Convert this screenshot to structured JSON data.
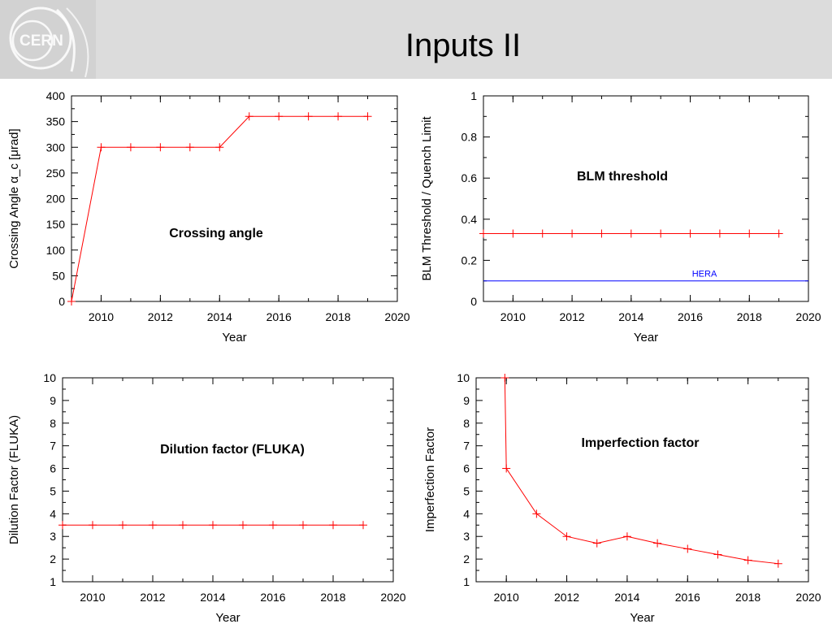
{
  "slide": {
    "title": "Inputs II",
    "logo_text": "CERN"
  },
  "colors": {
    "header_bg": "#dcdcdc",
    "series": "#ff0000",
    "hera": "#0000ff"
  },
  "chart_data": [
    {
      "type": "line",
      "annotation": "Crossing angle",
      "xlabel": "Year",
      "ylabel": "Crossing Angle α_c [μrad]",
      "xlim": [
        2009,
        2020
      ],
      "ylim": [
        0,
        400
      ],
      "xticks": [
        2010,
        2012,
        2014,
        2016,
        2018,
        2020
      ],
      "yticks": [
        0,
        50,
        100,
        150,
        200,
        250,
        300,
        350,
        400
      ],
      "series": [
        {
          "color": "#ff0000",
          "x": [
            2009,
            2010,
            2011,
            2012,
            2013,
            2014,
            2015,
            2016,
            2017,
            2018,
            2019
          ],
          "y": [
            0,
            300,
            300,
            300,
            300,
            300,
            360,
            360,
            360,
            360,
            360
          ]
        }
      ]
    },
    {
      "type": "line",
      "annotation": "BLM threshold",
      "xlabel": "Year",
      "ylabel": "BLM Threshold / Quench Limit",
      "xlim": [
        2009,
        2020
      ],
      "ylim": [
        0,
        1
      ],
      "xticks": [
        2010,
        2012,
        2014,
        2016,
        2018,
        2020
      ],
      "yticks": [
        0,
        0.2,
        0.4,
        0.6,
        0.8,
        1
      ],
      "series": [
        {
          "color": "#ff0000",
          "x": [
            2009,
            2010,
            2011,
            2012,
            2013,
            2014,
            2015,
            2016,
            2017,
            2018,
            2019
          ],
          "y": [
            0.33,
            0.33,
            0.33,
            0.33,
            0.33,
            0.33,
            0.33,
            0.33,
            0.33,
            0.33,
            0.33
          ]
        }
      ],
      "hlines": [
        {
          "label": "HERA",
          "y": 0.1,
          "color": "#0000ff"
        }
      ]
    },
    {
      "type": "line",
      "annotation": "Dilution factor (FLUKA)",
      "xlabel": "Year",
      "ylabel": "Dilution Factor (FLUKA)",
      "xlim": [
        2009,
        2020
      ],
      "ylim": [
        1,
        10
      ],
      "xticks": [
        2010,
        2012,
        2014,
        2016,
        2018,
        2020
      ],
      "yticks": [
        1,
        2,
        3,
        4,
        5,
        6,
        7,
        8,
        9,
        10
      ],
      "series": [
        {
          "color": "#ff0000",
          "x": [
            2009,
            2010,
            2011,
            2012,
            2013,
            2014,
            2015,
            2016,
            2017,
            2018,
            2019
          ],
          "y": [
            3.5,
            3.5,
            3.5,
            3.5,
            3.5,
            3.5,
            3.5,
            3.5,
            3.5,
            3.5,
            3.5
          ]
        }
      ]
    },
    {
      "type": "line",
      "annotation": "Imperfection factor",
      "xlabel": "Year",
      "ylabel": "Imperfection Factor",
      "xlim": [
        2009,
        2020
      ],
      "ylim": [
        1,
        10
      ],
      "xticks": [
        2010,
        2012,
        2014,
        2016,
        2018,
        2020
      ],
      "yticks": [
        1,
        2,
        3,
        4,
        5,
        6,
        7,
        8,
        9,
        10
      ],
      "series": [
        {
          "color": "#ff0000",
          "x": [
            2009.95,
            2010,
            2011,
            2012,
            2013,
            2014,
            2015,
            2016,
            2017,
            2018,
            2019
          ],
          "y": [
            10,
            6,
            4,
            3,
            2.7,
            3,
            2.7,
            2.45,
            2.2,
            1.95,
            1.8
          ]
        }
      ]
    }
  ]
}
